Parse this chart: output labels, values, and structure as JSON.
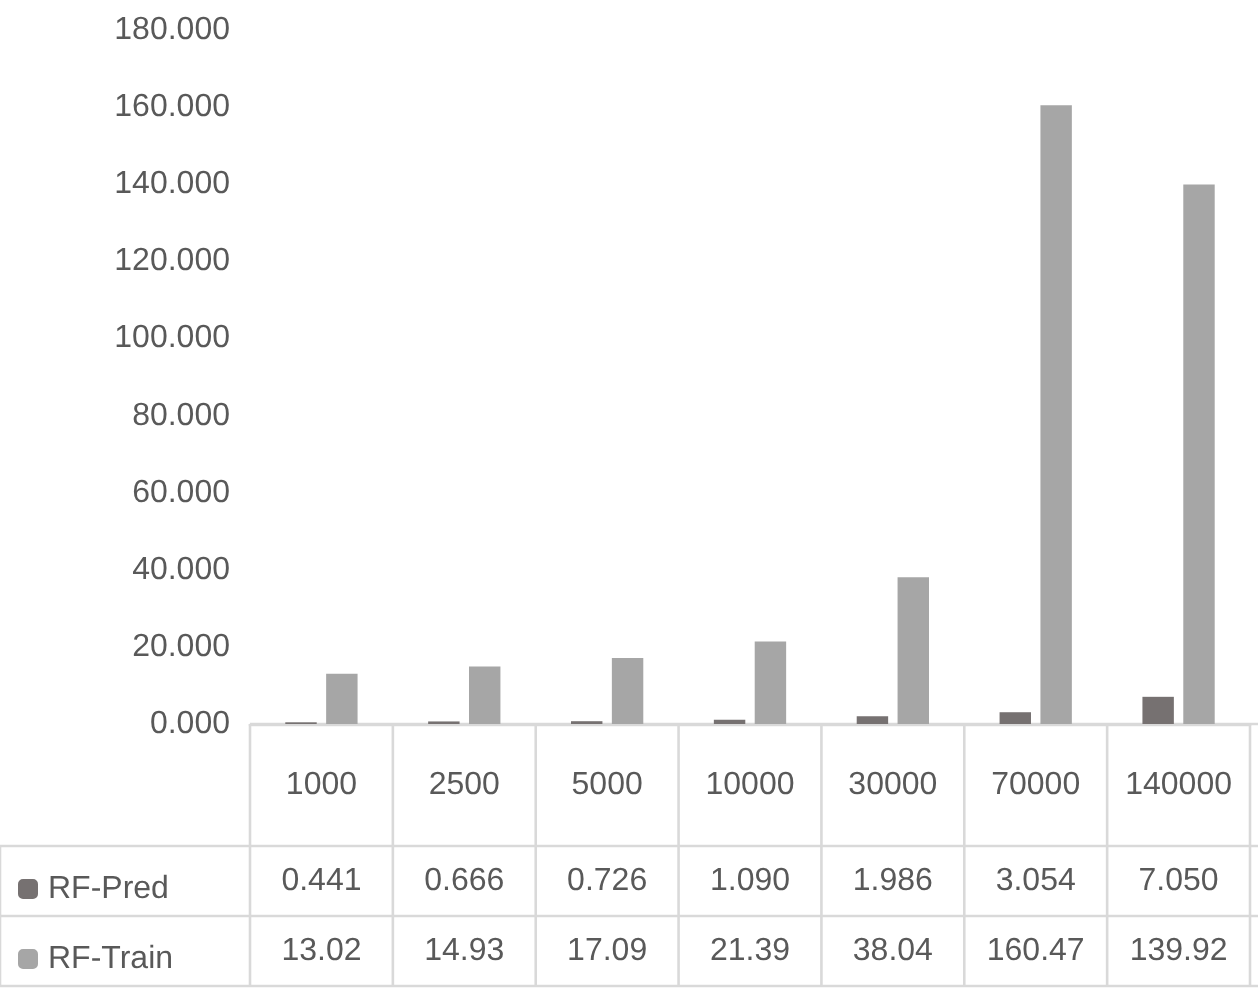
{
  "chart_data": {
    "type": "bar",
    "categories": [
      "1000",
      "2500",
      "5000",
      "10000",
      "30000",
      "70000",
      "140000"
    ],
    "series": [
      {
        "name": "RF-Pred",
        "color": "#767171",
        "values": [
          0.441,
          0.666,
          0.726,
          1.09,
          1.986,
          3.054,
          7.05
        ],
        "value_labels": [
          "0.441",
          "0.666",
          "0.726",
          "1.090",
          "1.986",
          "3.054",
          "7.050"
        ]
      },
      {
        "name": "RF-Train",
        "color": "#a6a6a6",
        "values": [
          13.02,
          14.93,
          17.09,
          21.39,
          38.04,
          160.47,
          139.92
        ],
        "value_labels": [
          "13.02",
          "14.93",
          "17.09",
          "21.39",
          "38.04",
          "160.47",
          "139.92"
        ]
      }
    ],
    "ylim": [
      0,
      180
    ],
    "yticks": [
      {
        "value": 0,
        "label": "0.000"
      },
      {
        "value": 20,
        "label": "20.000"
      },
      {
        "value": 40,
        "label": "40.000"
      },
      {
        "value": 60,
        "label": "60.000"
      },
      {
        "value": 80,
        "label": "80.000"
      },
      {
        "value": 100,
        "label": "100.000"
      },
      {
        "value": 120,
        "label": "120.000"
      },
      {
        "value": 140,
        "label": "140.000"
      },
      {
        "value": 160,
        "label": "160.000"
      },
      {
        "value": 180,
        "label": "180.000"
      }
    ],
    "grid": false,
    "legend": "bottom left"
  }
}
